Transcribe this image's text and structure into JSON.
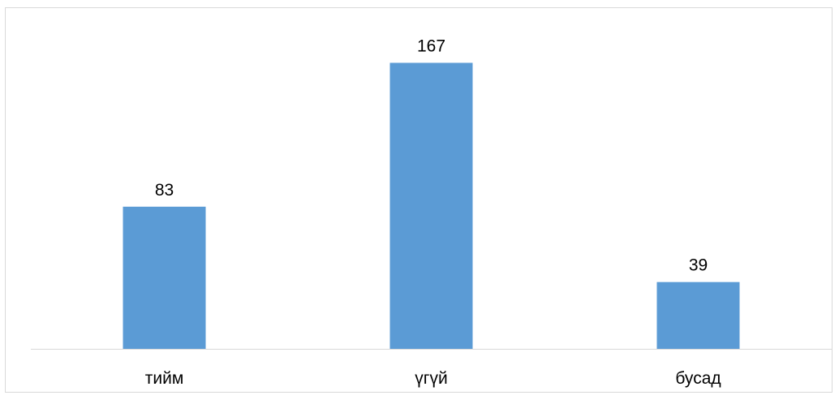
{
  "chart_data": {
    "type": "bar",
    "categories": [
      "тийм",
      "үгүй",
      "бусад"
    ],
    "values": [
      83,
      167,
      39
    ],
    "data_labels": [
      "83",
      "167",
      "39"
    ],
    "title": "",
    "xlabel": "",
    "ylabel": "",
    "ylim": [
      0,
      180
    ],
    "grid": false,
    "legend": "none",
    "bar_color": "#5b9bd5",
    "axis_color": "#d9d9d9",
    "label_color": "#000000"
  }
}
